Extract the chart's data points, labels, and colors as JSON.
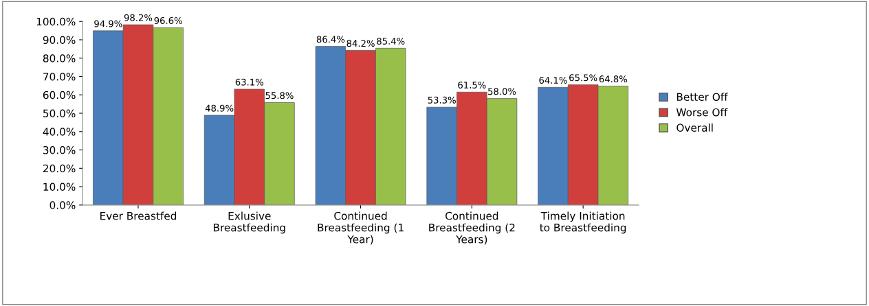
{
  "chart_data": {
    "type": "bar",
    "categories": [
      "Ever Breastfed",
      "Exlusive\nBreastfeeding",
      "Continued\nBreastfeeding (1\nYear)",
      "Continued\nBreastfeeding (2\nYears)",
      "Timely Initiation\nto Breastfeeding"
    ],
    "series": [
      {
        "name": "Better Off",
        "color": "#4a7ebb",
        "values": [
          94.9,
          48.9,
          86.4,
          53.3,
          64.1
        ],
        "value_labels": [
          "94.9%",
          "48.9%",
          "86.4%",
          "53.3%",
          "64.1%"
        ]
      },
      {
        "name": "Worse Off",
        "color": "#d13f3c",
        "values": [
          98.2,
          63.1,
          84.2,
          61.5,
          65.5
        ],
        "value_labels": [
          "98.2%",
          "63.1%",
          "84.2%",
          "61.5%",
          "65.5%"
        ]
      },
      {
        "name": "Overall",
        "color": "#98bf4a",
        "values": [
          96.6,
          55.8,
          85.4,
          58.0,
          64.8
        ],
        "value_labels": [
          "96.6%",
          "55.8%",
          "85.4%",
          "58.0%",
          "64.8%"
        ]
      }
    ],
    "ylim": [
      0,
      100
    ],
    "yticks": [
      {
        "value": 0,
        "label": "0.0%"
      },
      {
        "value": 10,
        "label": "10.0%"
      },
      {
        "value": 20,
        "label": "20.0%"
      },
      {
        "value": 30,
        "label": "30.0%"
      },
      {
        "value": 40,
        "label": "40.0%"
      },
      {
        "value": 50,
        "label": "50.0%"
      },
      {
        "value": 60,
        "label": "60.0%"
      },
      {
        "value": 70,
        "label": "70.0%"
      },
      {
        "value": 80,
        "label": "80.0%"
      },
      {
        "value": 90,
        "label": "90.0%"
      },
      {
        "value": 100,
        "label": "100.0%"
      }
    ],
    "grid": false,
    "legend": "right"
  }
}
